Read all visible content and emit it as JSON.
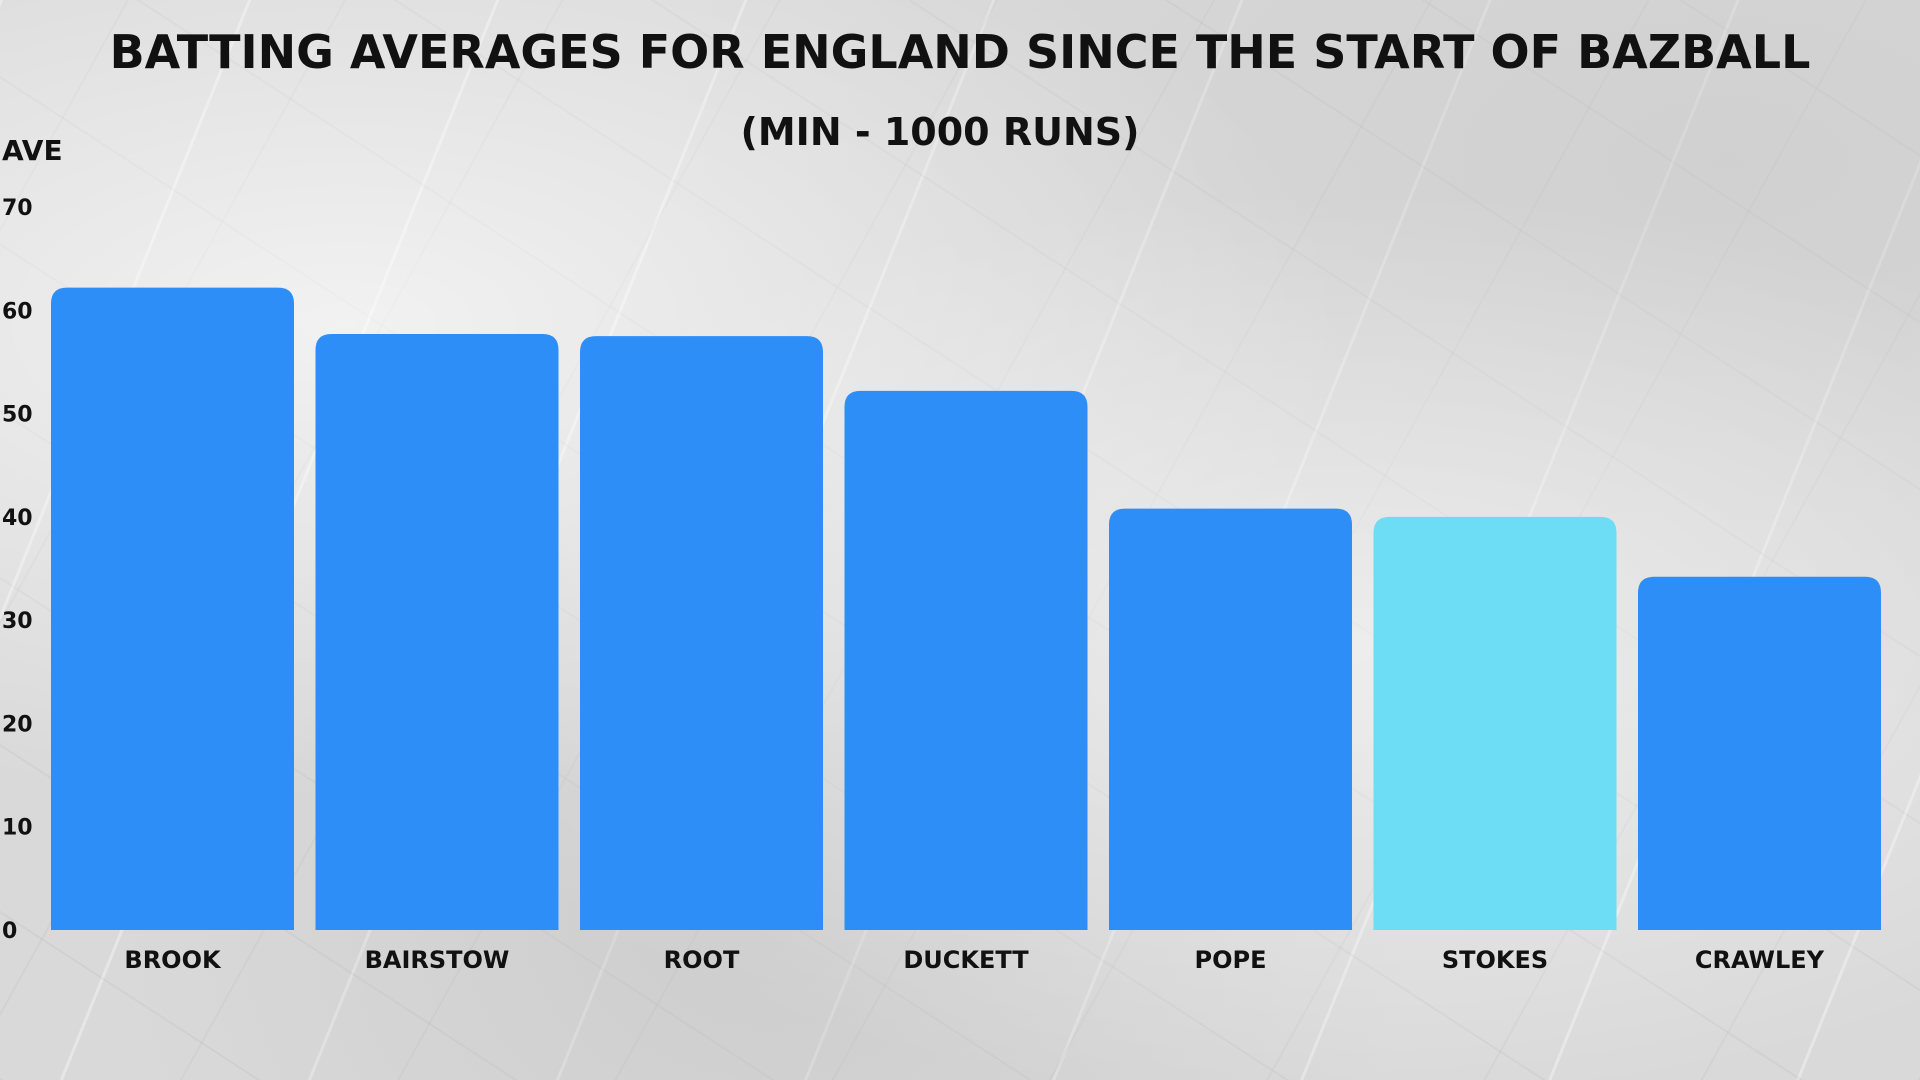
{
  "chart_data": {
    "type": "bar",
    "title": "BATTING AVERAGES FOR ENGLAND SINCE THE START OF BAZBALL",
    "subtitle": "(MIN - 1000 RUNS)",
    "ylabel": "AVE",
    "xlabel": "",
    "categories": [
      "BROOK",
      "BAIRSTOW",
      "ROOT",
      "DUCKETT",
      "POPE",
      "STOKES",
      "CRAWLEY"
    ],
    "values": [
      62.2,
      57.7,
      57.5,
      52.2,
      40.8,
      40.0,
      34.2
    ],
    "highlight_index": 5,
    "ylim": [
      0,
      70
    ],
    "yticks": [
      0,
      10,
      20,
      30,
      40,
      50,
      60,
      70
    ],
    "grid": false,
    "colors": {
      "bar": "#2e8ef7",
      "highlight": "#6ddcf5"
    }
  }
}
